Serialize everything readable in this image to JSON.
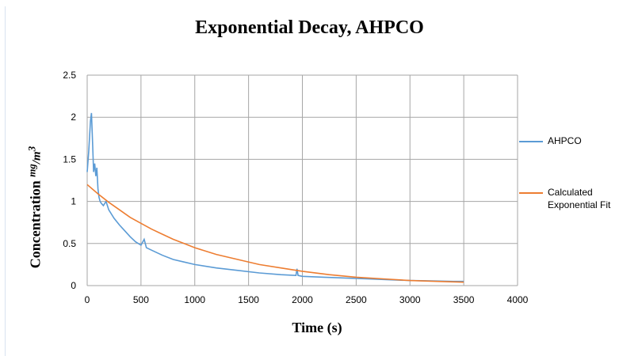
{
  "chart_data": {
    "type": "line",
    "title": "Exponential Decay, AHPCO",
    "xlabel": "Time (s)",
    "ylabel": "Concentration",
    "ylabel_unit": {
      "numerator": "mg",
      "denominator": "m",
      "exponent": "3"
    },
    "xlim": [
      0,
      4000
    ],
    "ylim": [
      0,
      2.5
    ],
    "xticks": [
      "0",
      "500",
      "1000",
      "1500",
      "2000",
      "2500",
      "3000",
      "3500",
      "4000"
    ],
    "yticks": [
      "0",
      "0.5",
      "1",
      "1.5",
      "2",
      "2.5"
    ],
    "grid": true,
    "legend_position": "right",
    "series": [
      {
        "name": "AHPCO",
        "color": "#5b9bd5",
        "x": [
          0,
          15,
          30,
          40,
          50,
          60,
          70,
          80,
          90,
          100,
          110,
          120,
          130,
          150,
          175,
          200,
          250,
          300,
          350,
          400,
          450,
          500,
          530,
          550,
          600,
          700,
          800,
          900,
          1000,
          1200,
          1400,
          1600,
          1800,
          1940,
          1950,
          1960,
          2000,
          2200,
          2400,
          2600,
          2800,
          3000,
          3200,
          3400,
          3500
        ],
        "y": [
          1.35,
          1.6,
          1.95,
          2.05,
          1.7,
          1.35,
          1.45,
          1.3,
          1.4,
          1.15,
          1.05,
          1.0,
          0.98,
          0.95,
          1.0,
          0.9,
          0.8,
          0.72,
          0.65,
          0.58,
          0.52,
          0.48,
          0.55,
          0.45,
          0.42,
          0.36,
          0.31,
          0.28,
          0.25,
          0.21,
          0.18,
          0.15,
          0.13,
          0.12,
          0.2,
          0.12,
          0.11,
          0.1,
          0.09,
          0.08,
          0.07,
          0.06,
          0.055,
          0.05,
          0.05
        ]
      },
      {
        "name": "Calculated Exponential Fit",
        "color": "#ed7d31",
        "x": [
          0,
          100,
          200,
          300,
          400,
          500,
          600,
          700,
          800,
          900,
          1000,
          1200,
          1400,
          1600,
          1800,
          2000,
          2250,
          2500,
          2750,
          3000,
          3250,
          3500
        ],
        "y": [
          1.2,
          1.09,
          0.99,
          0.9,
          0.81,
          0.74,
          0.67,
          0.61,
          0.55,
          0.5,
          0.45,
          0.37,
          0.31,
          0.25,
          0.21,
          0.17,
          0.13,
          0.1,
          0.08,
          0.06,
          0.05,
          0.04
        ]
      }
    ]
  }
}
